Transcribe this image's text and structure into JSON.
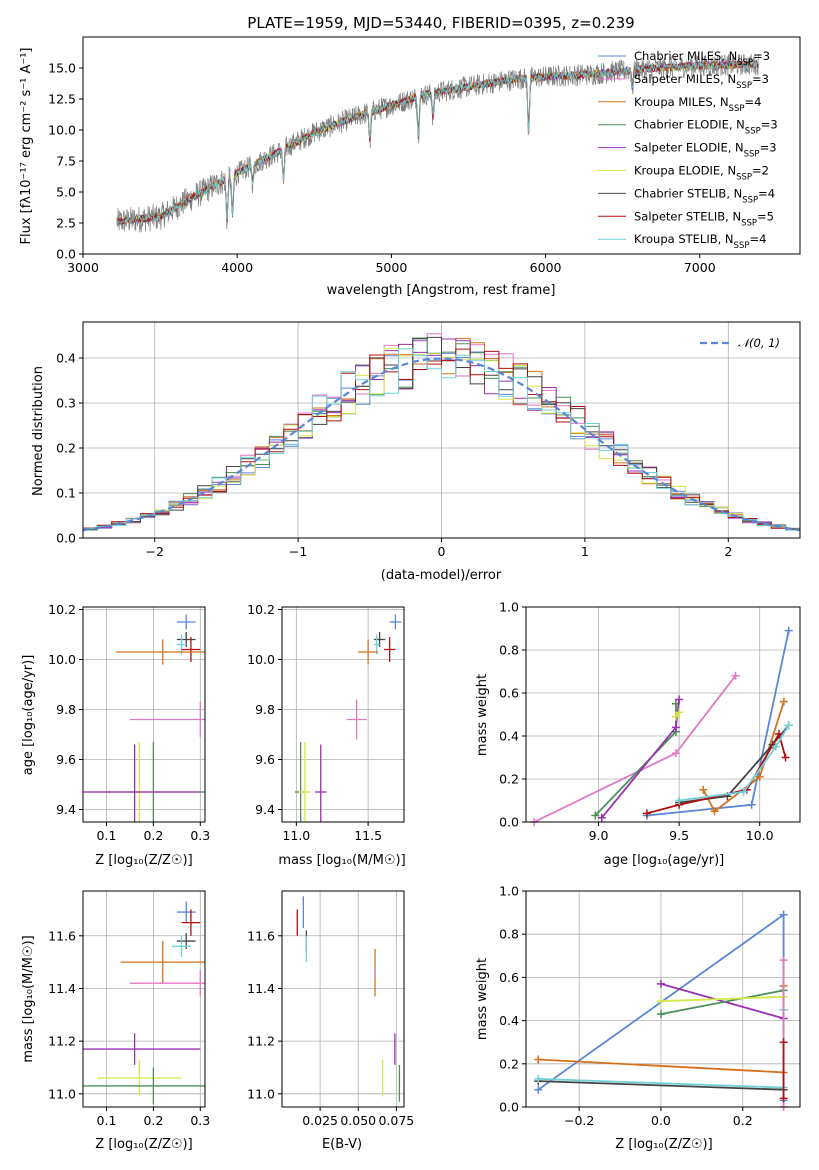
{
  "colors": {
    "chabrier_miles": "#5b86d8",
    "salpeter_miles": "#e377c2",
    "kroupa_miles": "#d4711d",
    "chabrier_elodie": "#4c8f5a",
    "salpeter_elodie": "#9b30b0",
    "kroupa_elodie": "#d5e84a",
    "chabrier_stelib": "#444444",
    "salpeter_stelib": "#b01010",
    "kroupa_stelib": "#6fd0d8"
  },
  "chart_data": [
    {
      "id": "spectrum",
      "type": "line",
      "title": "PLATE=1959, MJD=53440, FIBERID=0395, z=0.239",
      "xlabel": "wavelength [Angstrom, rest frame]",
      "ylabel": "Flux [fλ10⁻¹⁷ erg cm⁻² s⁻¹ A⁻¹]",
      "xlim": [
        3000,
        7650
      ],
      "ylim": [
        0,
        17.5
      ],
      "xticks": [
        "3000",
        "4000",
        "5000",
        "6000",
        "7000"
      ],
      "yticks": [
        "0.0",
        "2.5",
        "5.0",
        "7.5",
        "10.0",
        "12.5",
        "15.0"
      ],
      "grid": false,
      "legend_position": "top-right",
      "data_range": [
        3220,
        7380
      ],
      "continuum": [
        [
          3220,
          2.6
        ],
        [
          3500,
          3.0
        ],
        [
          3700,
          4.5
        ],
        [
          3950,
          6.2
        ],
        [
          4200,
          7.8
        ],
        [
          4500,
          9.8
        ],
        [
          4800,
          11.2
        ],
        [
          5000,
          12.0
        ],
        [
          5200,
          12.8
        ],
        [
          5500,
          13.5
        ],
        [
          5800,
          14.1
        ],
        [
          6000,
          14.3
        ],
        [
          6300,
          14.5
        ],
        [
          6600,
          14.9
        ],
        [
          7000,
          15.2
        ],
        [
          7380,
          15.3
        ]
      ],
      "series": [
        {
          "name": "Chabrier MILES, N_SSP=3",
          "label": "Chabrier MILES, N",
          "sub": "SSP",
          "suffix": "=3",
          "color_key": "chabrier_miles"
        },
        {
          "name": "Salpeter MILES, N_SSP=3",
          "label": "Salpeter MILES, N",
          "sub": "SSP",
          "suffix": "=3",
          "color_key": "salpeter_miles"
        },
        {
          "name": "Kroupa MILES, N_SSP=4",
          "label": "Kroupa MILES, N",
          "sub": "SSP",
          "suffix": "=4",
          "color_key": "kroupa_miles"
        },
        {
          "name": "Chabrier ELODIE, N_SSP=3",
          "label": "Chabrier ELODIE, N",
          "sub": "SSP",
          "suffix": "=3",
          "color_key": "chabrier_elodie"
        },
        {
          "name": "Salpeter ELODIE, N_SSP=3",
          "label": "Salpeter ELODIE, N",
          "sub": "SSP",
          "suffix": "=3",
          "color_key": "salpeter_elodie"
        },
        {
          "name": "Kroupa ELODIE, N_SSP=2",
          "label": "Kroupa ELODIE, N",
          "sub": "SSP",
          "suffix": "=2",
          "color_key": "kroupa_elodie"
        },
        {
          "name": "Chabrier STELIB, N_SSP=4",
          "label": "Chabrier STELIB, N",
          "sub": "SSP",
          "suffix": "=4",
          "color_key": "chabrier_stelib"
        },
        {
          "name": "Salpeter STELIB, N_SSP=5",
          "label": "Salpeter STELIB, N",
          "sub": "SSP",
          "suffix": "=5",
          "color_key": "salpeter_stelib"
        },
        {
          "name": "Kroupa STELIB, N_SSP=4",
          "label": "Kroupa STELIB, N",
          "sub": "SSP",
          "suffix": "=4",
          "color_key": "kroupa_stelib"
        }
      ]
    },
    {
      "id": "residuals",
      "type": "histogram",
      "xlabel": "(data-model)/error",
      "ylabel": "Normed distribution",
      "xlim": [
        -2.5,
        2.5
      ],
      "ylim": [
        0,
        0.48
      ],
      "xticks": [
        "−2",
        "−1",
        "0",
        "1",
        "2"
      ],
      "yticks": [
        "0.0",
        "0.1",
        "0.2",
        "0.3",
        "0.4"
      ],
      "grid": true,
      "legend_position": "top-right",
      "legend": "𝒩(0, 1)",
      "reference_curve": "gaussian mean 0, sigma 1",
      "bin_width": 0.1,
      "series_color_keys": [
        "chabrier_miles",
        "salpeter_miles",
        "kroupa_miles",
        "chabrier_elodie",
        "salpeter_elodie",
        "kroupa_elodie",
        "chabrier_stelib",
        "salpeter_stelib",
        "kroupa_stelib"
      ]
    },
    {
      "id": "age_vs_Z",
      "type": "errorbar",
      "xlabel": "Z [log₁₀(Z/Z☉)]",
      "ylabel": "age  [log₁₀(age/yr)]",
      "xlim": [
        0.05,
        0.31
      ],
      "ylim": [
        9.35,
        10.21
      ],
      "xticks": [
        [
          0.1,
          "0.1"
        ],
        [
          0.2,
          "0.2"
        ],
        [
          0.3,
          "0.3"
        ]
      ],
      "yticks": [
        [
          9.4,
          "9.4"
        ],
        [
          9.6,
          "9.6"
        ],
        [
          9.8,
          "9.8"
        ],
        [
          10.0,
          "10.0"
        ],
        [
          10.2,
          "10.2"
        ]
      ],
      "grid": true,
      "points": [
        {
          "c": "chabrier_miles",
          "x": 0.27,
          "y": 10.15,
          "xerr": 0.02,
          "yerr": 0.03
        },
        {
          "c": "chabrier_stelib",
          "x": 0.27,
          "y": 10.08,
          "xerr": 0.02,
          "yerr": 0.03
        },
        {
          "c": "kroupa_stelib",
          "x": 0.26,
          "y": 10.06,
          "xerr": 0.01,
          "yerr": 0.04
        },
        {
          "c": "salpeter_stelib",
          "x": 0.28,
          "y": 10.04,
          "xerr": 0.02,
          "yerr": 0.05
        },
        {
          "c": "kroupa_miles",
          "x": 0.22,
          "y": 10.03,
          "xerr": 0.1,
          "yerr": 0.05
        },
        {
          "c": "salpeter_miles",
          "x": 0.3,
          "y": 9.76,
          "xerr": 0.15,
          "yerr": 0.07
        },
        {
          "c": "chabrier_elodie",
          "x": 0.2,
          "y": 9.47,
          "xerr": 0.14,
          "yerr": 0.2
        },
        {
          "c": "kroupa_elodie",
          "x": 0.17,
          "y": 9.47,
          "xerr": 0.09,
          "yerr": 0.2
        },
        {
          "c": "salpeter_elodie",
          "x": 0.16,
          "y": 9.47,
          "xerr": 0.14,
          "yerr": 0.19
        }
      ]
    },
    {
      "id": "age_vs_mass",
      "type": "errorbar",
      "xlabel": "mass [log₁₀(M/M☉)]",
      "ylabel": "",
      "xlim": [
        10.9,
        11.75
      ],
      "ylim": [
        9.35,
        10.21
      ],
      "xticks": [
        [
          11.0,
          "11.0"
        ],
        [
          11.5,
          "11.5"
        ]
      ],
      "yticks": [
        [
          9.4,
          "9.4"
        ],
        [
          9.6,
          "9.6"
        ],
        [
          9.8,
          "9.8"
        ],
        [
          10.0,
          "10.0"
        ],
        [
          10.2,
          "10.2"
        ]
      ],
      "grid": true,
      "points": [
        {
          "c": "chabrier_miles",
          "x": 11.69,
          "y": 10.15,
          "xerr": 0.04,
          "yerr": 0.03
        },
        {
          "c": "chabrier_stelib",
          "x": 11.58,
          "y": 10.08,
          "xerr": 0.04,
          "yerr": 0.03
        },
        {
          "c": "kroupa_stelib",
          "x": 11.56,
          "y": 10.06,
          "xerr": 0.02,
          "yerr": 0.04
        },
        {
          "c": "salpeter_stelib",
          "x": 11.65,
          "y": 10.04,
          "xerr": 0.04,
          "yerr": 0.05
        },
        {
          "c": "kroupa_miles",
          "x": 11.5,
          "y": 10.03,
          "xerr": 0.07,
          "yerr": 0.05
        },
        {
          "c": "salpeter_miles",
          "x": 11.42,
          "y": 9.76,
          "xerr": 0.07,
          "yerr": 0.08
        },
        {
          "c": "chabrier_elodie",
          "x": 11.03,
          "y": 9.47,
          "xerr": 0.04,
          "yerr": 0.2
        },
        {
          "c": "kroupa_elodie",
          "x": 11.06,
          "y": 9.47,
          "xerr": 0.04,
          "yerr": 0.2
        },
        {
          "c": "salpeter_elodie",
          "x": 11.17,
          "y": 9.47,
          "xerr": 0.04,
          "yerr": 0.19
        }
      ]
    },
    {
      "id": "weight_vs_age",
      "type": "line",
      "xlabel": "age  [log₁₀(age/yr)]",
      "ylabel": "mass weight",
      "xlim": [
        8.55,
        10.25
      ],
      "ylim": [
        0,
        1
      ],
      "xticks": [
        [
          9.0,
          "9.0"
        ],
        [
          9.5,
          "9.5"
        ],
        [
          10.0,
          "10.0"
        ]
      ],
      "yticks": [
        [
          0.0,
          "0.0"
        ],
        [
          0.2,
          "0.2"
        ],
        [
          0.4,
          "0.4"
        ],
        [
          0.6,
          "0.6"
        ],
        [
          0.8,
          "0.8"
        ],
        [
          1.0,
          "1.0"
        ]
      ],
      "grid": true,
      "series": [
        {
          "c": "salpeter_miles",
          "pts": [
            [
              8.6,
              0.0
            ],
            [
              9.48,
              0.32
            ],
            [
              9.85,
              0.68
            ]
          ]
        },
        {
          "c": "chabrier_miles",
          "pts": [
            [
              9.3,
              0.03
            ],
            [
              9.95,
              0.08
            ],
            [
              10.18,
              0.89
            ]
          ]
        },
        {
          "c": "kroupa_miles",
          "pts": [
            [
              9.65,
              0.15
            ],
            [
              9.72,
              0.05
            ],
            [
              10.0,
              0.21
            ],
            [
              10.15,
              0.56
            ]
          ]
        },
        {
          "c": "chabrier_elodie",
          "pts": [
            [
              8.98,
              0.03
            ],
            [
              9.48,
              0.42
            ],
            [
              9.48,
              0.55
            ]
          ]
        },
        {
          "c": "salpeter_elodie",
          "pts": [
            [
              9.02,
              0.02
            ],
            [
              9.48,
              0.44
            ],
            [
              9.5,
              0.57
            ]
          ]
        },
        {
          "c": "kroupa_elodie",
          "pts": [
            [
              9.48,
              0.49
            ],
            [
              9.5,
              0.51
            ]
          ]
        },
        {
          "c": "chabrier_stelib",
          "pts": [
            [
              9.5,
              0.09
            ],
            [
              9.8,
              0.12
            ],
            [
              10.08,
              0.36
            ],
            [
              10.18,
              0.45
            ]
          ]
        },
        {
          "c": "salpeter_stelib",
          "pts": [
            [
              9.3,
              0.04
            ],
            [
              9.5,
              0.08
            ],
            [
              9.92,
              0.15
            ],
            [
              10.12,
              0.41
            ],
            [
              10.16,
              0.3
            ]
          ]
        },
        {
          "c": "kroupa_stelib",
          "pts": [
            [
              9.5,
              0.1
            ],
            [
              9.9,
              0.14
            ],
            [
              10.1,
              0.35
            ],
            [
              10.18,
              0.45
            ]
          ]
        }
      ]
    },
    {
      "id": "mass_vs_Z",
      "type": "errorbar",
      "xlabel": "Z [log₁₀(Z/Z☉)]",
      "ylabel": "mass [log₁₀(M/M☉)]",
      "xlim": [
        0.05,
        0.31
      ],
      "ylim": [
        10.95,
        11.77
      ],
      "xticks": [
        [
          0.1,
          "0.1"
        ],
        [
          0.2,
          "0.2"
        ],
        [
          0.3,
          "0.3"
        ]
      ],
      "yticks": [
        [
          11.0,
          "11.0"
        ],
        [
          11.2,
          "11.2"
        ],
        [
          11.4,
          "11.4"
        ],
        [
          11.6,
          "11.6"
        ]
      ],
      "grid": true,
      "points": [
        {
          "c": "chabrier_miles",
          "x": 0.27,
          "y": 11.69,
          "xerr": 0.02,
          "yerr": 0.04
        },
        {
          "c": "salpeter_stelib",
          "x": 0.28,
          "y": 11.65,
          "xerr": 0.02,
          "yerr": 0.05
        },
        {
          "c": "chabrier_stelib",
          "x": 0.27,
          "y": 11.58,
          "xerr": 0.02,
          "yerr": 0.03
        },
        {
          "c": "kroupa_stelib",
          "x": 0.26,
          "y": 11.56,
          "xerr": 0.02,
          "yerr": 0.04
        },
        {
          "c": "kroupa_miles",
          "x": 0.22,
          "y": 11.5,
          "xerr": 0.09,
          "yerr": 0.08
        },
        {
          "c": "salpeter_miles",
          "x": 0.3,
          "y": 11.42,
          "xerr": 0.15,
          "yerr": 0.05
        },
        {
          "c": "salpeter_elodie",
          "x": 0.16,
          "y": 11.17,
          "xerr": 0.14,
          "yerr": 0.06
        },
        {
          "c": "kroupa_elodie",
          "x": 0.17,
          "y": 11.06,
          "xerr": 0.09,
          "yerr": 0.07
        },
        {
          "c": "chabrier_elodie",
          "x": 0.2,
          "y": 11.03,
          "xerr": 0.15,
          "yerr": 0.07
        }
      ]
    },
    {
      "id": "mass_vs_ebv",
      "type": "errorbar",
      "xlabel": "E(B-V)",
      "ylabel": "",
      "xlim": [
        0.0,
        0.08
      ],
      "ylim": [
        10.95,
        11.77
      ],
      "xticks": [
        [
          0.025,
          "0.025"
        ],
        [
          0.05,
          "0.050"
        ],
        [
          0.075,
          "0.075"
        ]
      ],
      "yticks": [
        [
          11.0,
          "11.0"
        ],
        [
          11.2,
          "11.2"
        ],
        [
          11.4,
          "11.4"
        ],
        [
          11.6,
          "11.6"
        ]
      ],
      "grid": true,
      "points": [
        {
          "c": "chabrier_miles",
          "x": 0.014,
          "y": 11.69,
          "xerr": 0.0,
          "yerr": 0.06
        },
        {
          "c": "salpeter_stelib",
          "x": 0.01,
          "y": 11.65,
          "xerr": 0.0,
          "yerr": 0.05
        },
        {
          "c": "chabrier_stelib",
          "x": 0.016,
          "y": 11.58,
          "xerr": 0.0,
          "yerr": 0.04
        },
        {
          "c": "kroupa_stelib",
          "x": 0.016,
          "y": 11.55,
          "xerr": 0.0,
          "yerr": 0.05
        },
        {
          "c": "kroupa_miles",
          "x": 0.061,
          "y": 11.46,
          "xerr": 0.0,
          "yerr": 0.09
        },
        {
          "c": "salpeter_miles",
          "x": 0.061,
          "y": 11.46,
          "xerr": 0.0,
          "yerr": 0.02
        },
        {
          "c": "salpeter_elodie",
          "x": 0.074,
          "y": 11.17,
          "xerr": 0.0,
          "yerr": 0.06
        },
        {
          "c": "kroupa_elodie",
          "x": 0.066,
          "y": 11.06,
          "xerr": 0.0,
          "yerr": 0.07
        },
        {
          "c": "chabrier_elodie",
          "x": 0.077,
          "y": 11.04,
          "xerr": 0.0,
          "yerr": 0.07
        }
      ]
    },
    {
      "id": "weight_vs_Z",
      "type": "line",
      "xlabel": "Z [log₁₀(Z/Z☉)]",
      "ylabel": "mass weight",
      "xlim": [
        -0.33,
        0.34
      ],
      "ylim": [
        0,
        1
      ],
      "xticks": [
        [
          -0.2,
          "−0.2"
        ],
        [
          0.0,
          "0.0"
        ],
        [
          0.2,
          "0.2"
        ]
      ],
      "yticks": [
        [
          0.0,
          "0.0"
        ],
        [
          0.2,
          "0.2"
        ],
        [
          0.4,
          "0.4"
        ],
        [
          0.6,
          "0.6"
        ],
        [
          0.8,
          "0.8"
        ],
        [
          1.0,
          "1.0"
        ]
      ],
      "grid": true,
      "series": [
        {
          "c": "chabrier_miles",
          "pts": [
            [
              -0.3,
              0.08
            ],
            [
              0.3,
              0.89
            ],
            [
              0.3,
              0.03
            ]
          ]
        },
        {
          "c": "kroupa_miles",
          "pts": [
            [
              -0.3,
              0.22
            ],
            [
              0.3,
              0.16
            ],
            [
              0.3,
              0.56
            ]
          ]
        },
        {
          "c": "chabrier_stelib",
          "pts": [
            [
              -0.3,
              0.12
            ],
            [
              0.3,
              0.08
            ],
            [
              0.3,
              0.45
            ]
          ]
        },
        {
          "c": "kroupa_stelib",
          "pts": [
            [
              -0.3,
              0.13
            ],
            [
              0.3,
              0.09
            ],
            [
              0.3,
              0.45
            ]
          ]
        },
        {
          "c": "salpeter_elodie",
          "pts": [
            [
              0.0,
              0.57
            ],
            [
              0.3,
              0.41
            ]
          ]
        },
        {
          "c": "chabrier_elodie",
          "pts": [
            [
              0.0,
              0.43
            ],
            [
              0.3,
              0.54
            ]
          ]
        },
        {
          "c": "kroupa_elodie",
          "pts": [
            [
              0.0,
              0.49
            ],
            [
              0.3,
              0.51
            ]
          ]
        },
        {
          "c": "salpeter_miles",
          "pts": [
            [
              0.3,
              0.0
            ],
            [
              0.3,
              0.68
            ]
          ]
        },
        {
          "c": "salpeter_stelib",
          "pts": [
            [
              0.3,
              0.04
            ],
            [
              0.3,
              0.3
            ]
          ]
        }
      ]
    }
  ]
}
